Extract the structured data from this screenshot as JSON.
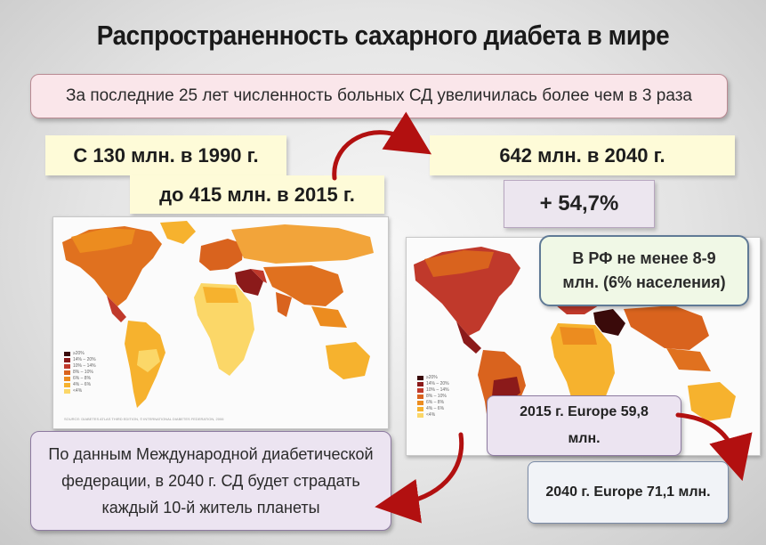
{
  "title": "Распространенность сахарного диабета в мире",
  "subtitle": "За последние 25 лет численность больных СД увеличилась более чем в 3 раза",
  "stats": {
    "from_1990": "С 130 млн. в 1990 г.",
    "to_2015": "до 415 млн. в 2015 г.",
    "in_2040": "642 млн. в 2040 г.",
    "growth": "+ 54,7%"
  },
  "rf_note": {
    "line1": "В РФ не менее  8-9",
    "line2": "млн. (6% населения)"
  },
  "idf_note": {
    "line1": "По данным Международной диабетической",
    "line2": "федерации, в 2040 г. СД будет страдать",
    "line3": "каждый 10-й житель планеты"
  },
  "europe": {
    "y2015_line1": "2015 г. Europe 59,8",
    "y2015_line2": "млн.",
    "y2040": "2040 г. Europe 71,1 млн."
  },
  "map_legend": {
    "items": [
      "≥20%",
      "14% – 20%",
      "10% – 14%",
      "8% – 10%",
      "6% – 8%",
      "4% – 6%",
      "<4%"
    ],
    "colors": [
      "#3a0a0a",
      "#8b1a1a",
      "#c0392b",
      "#d9631e",
      "#ec8c1f",
      "#f6b22e",
      "#fbd768"
    ]
  },
  "map_source": "SOURCE: DIABETES ATLAS THIRD EDITION, © INTERNATIONAL DIABETES FEDERATION, 2006",
  "colors": {
    "arrow": "#b21010",
    "subtitle_bg": "#fae6ea",
    "yellow_bg": "#fefbd8",
    "rf_bg": "#f0f8e6",
    "lavender_bg": "#ece4f1"
  }
}
